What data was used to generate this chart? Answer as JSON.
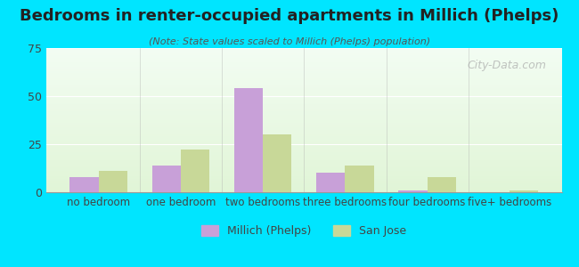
{
  "title": "Bedrooms in renter-occupied apartments in Millich (Phelps)",
  "subtitle": "(Note: State values scaled to Millich (Phelps) population)",
  "categories": [
    "no bedroom",
    "one bedroom",
    "two bedrooms",
    "three bedrooms",
    "four bedrooms",
    "five+ bedrooms"
  ],
  "millich_values": [
    8,
    14,
    54,
    10,
    1,
    0
  ],
  "sanjose_values": [
    11,
    22,
    30,
    14,
    8,
    1
  ],
  "millich_color": "#c8a0d8",
  "sanjose_color": "#c8d898",
  "ylim": [
    0,
    75
  ],
  "yticks": [
    0,
    25,
    50,
    75
  ],
  "background_outer": "#00e5ff",
  "background_inner_top": "#e8f5e8",
  "background_inner_bottom": "#f0ffe0",
  "bar_width": 0.35,
  "legend_millich": "Millich (Phelps)",
  "legend_sanjose": "San Jose",
  "watermark": "City-Data.com"
}
